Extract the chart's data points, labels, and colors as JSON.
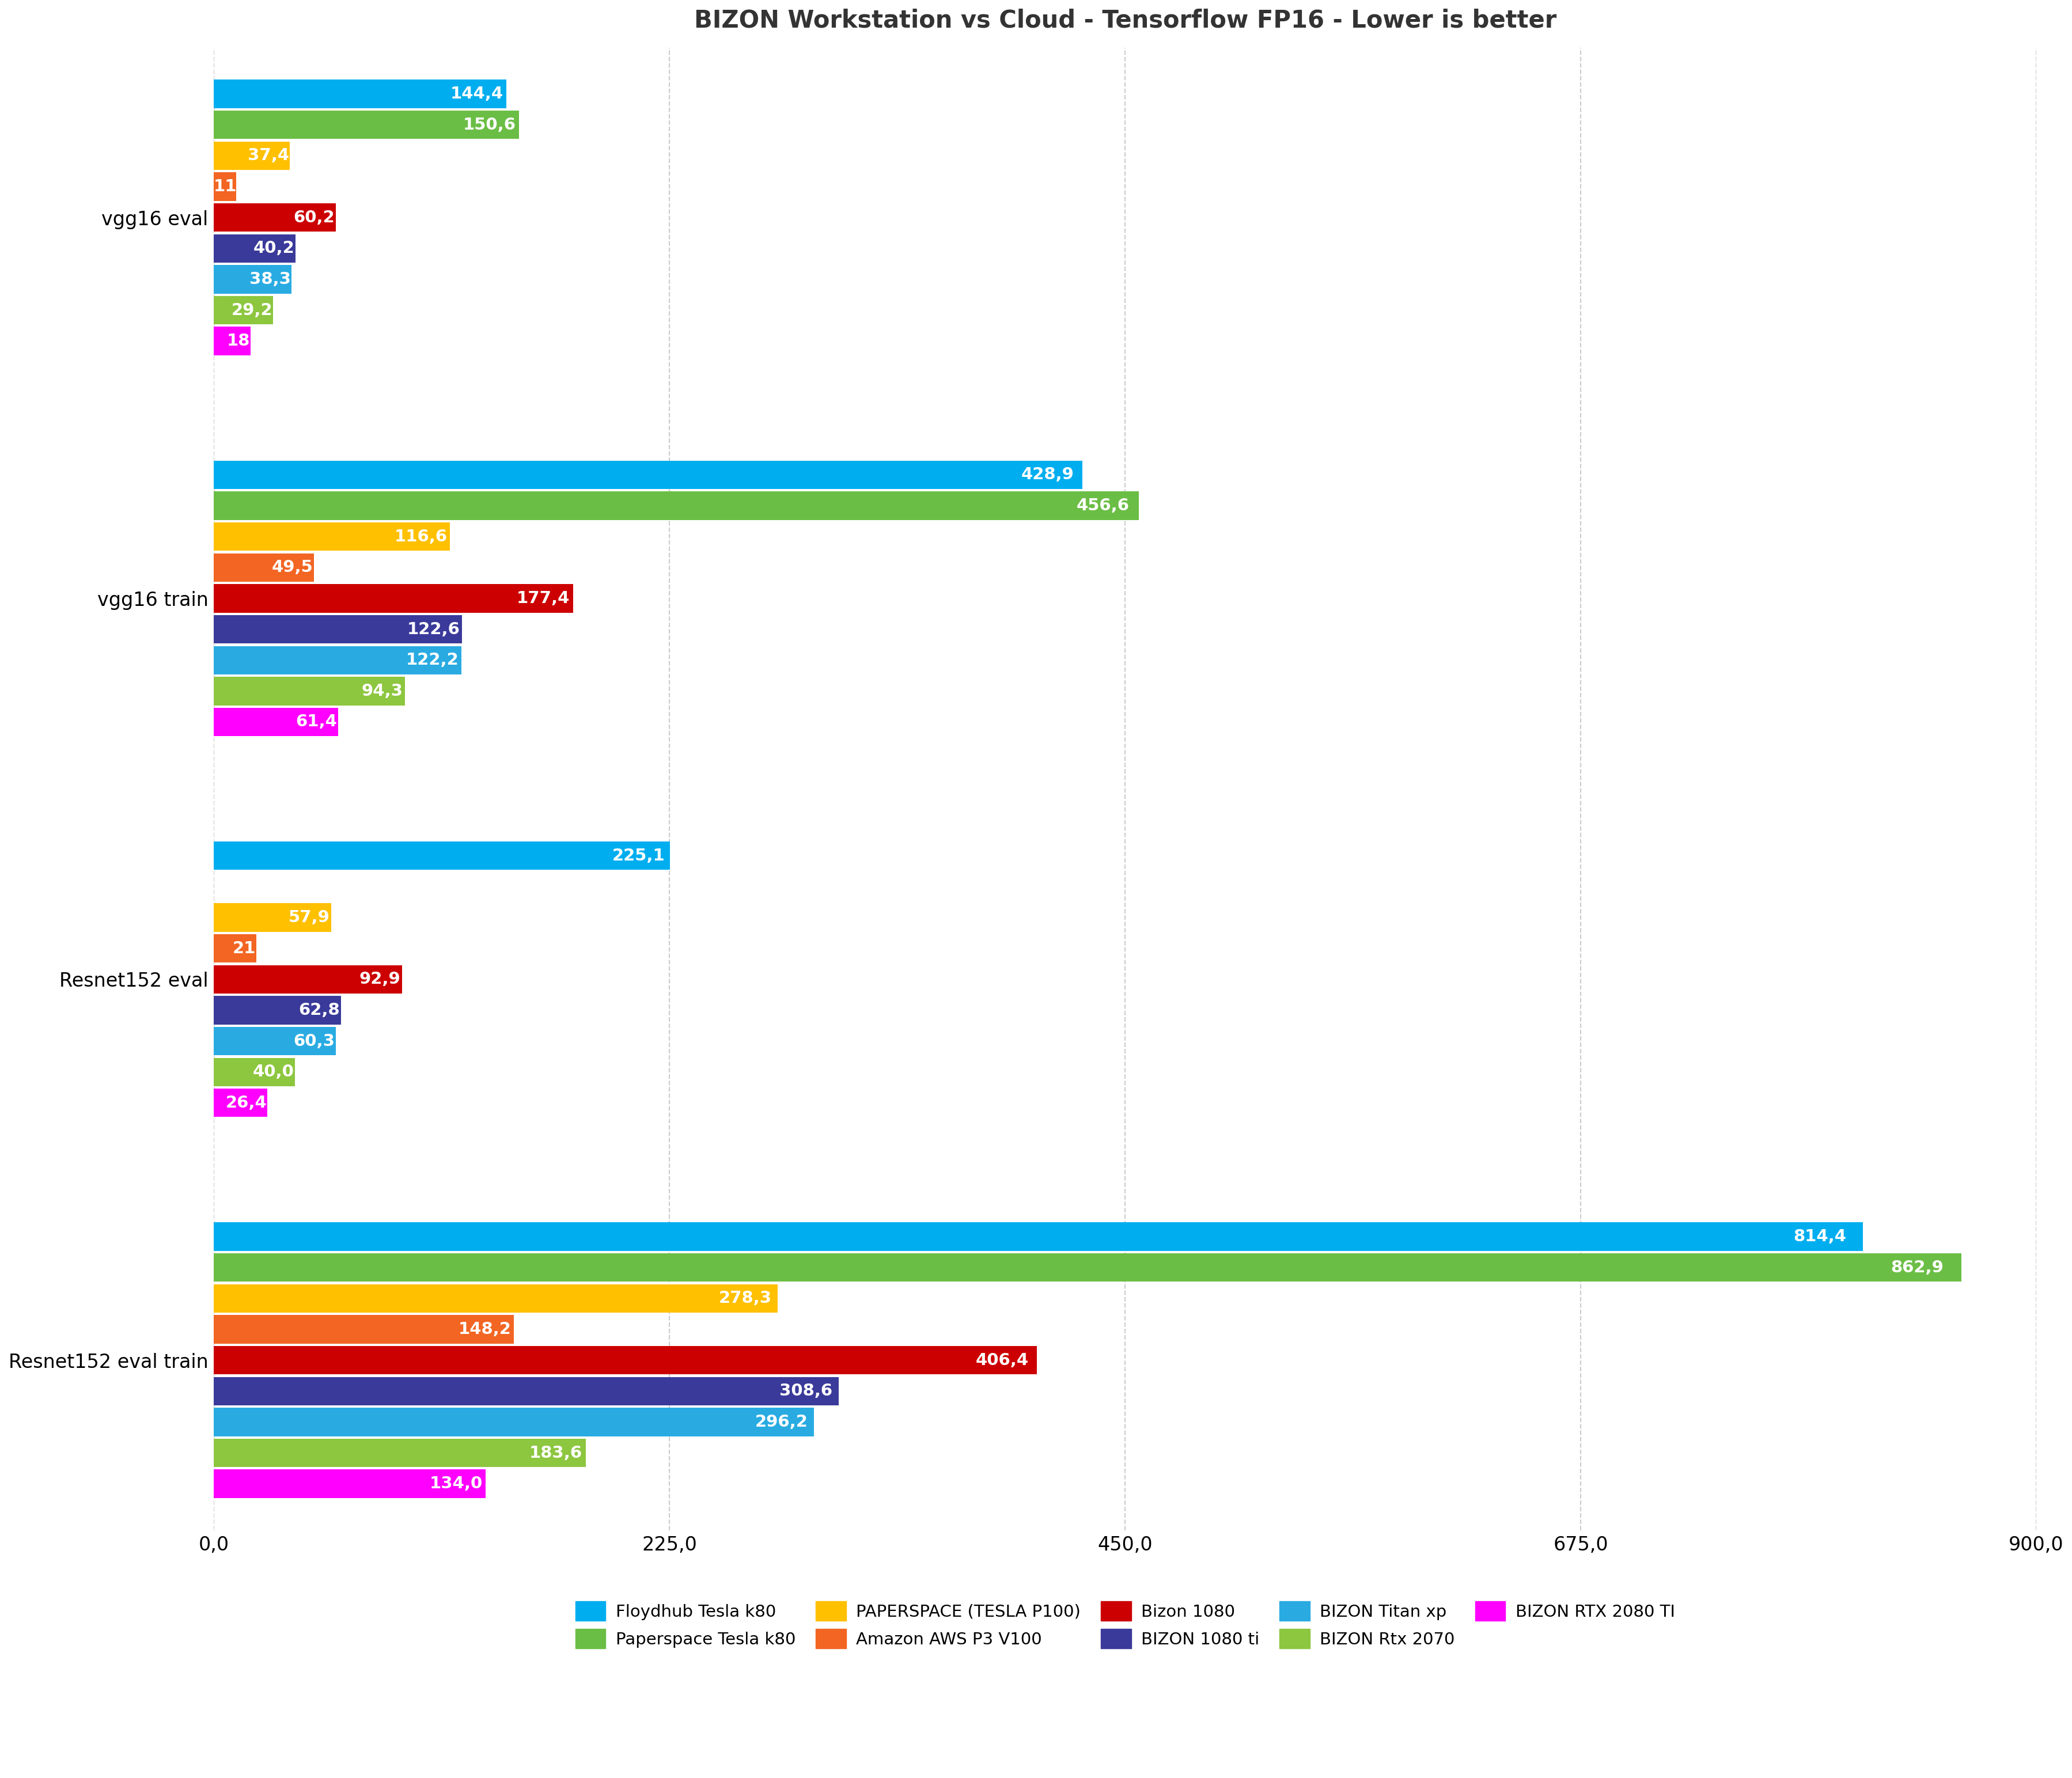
{
  "title": "BIZON Workstation vs Cloud - Tensorflow FP16 - Lower is better",
  "groups": [
    "Resnet152 eval train",
    "Resnet152 eval",
    "vgg16 train",
    "vgg16 eval"
  ],
  "group_labels": [
    "Resnet152 eval train",
    "Resnet152 eval",
    "vgg16 train",
    "vgg16 eval"
  ],
  "series": [
    {
      "label": "Floydhub Tesla k80",
      "color": "#00AEEF",
      "values": [
        814.4,
        225.1,
        428.9,
        144.4
      ]
    },
    {
      "label": "Paperspace Tesla k80",
      "color": "#6BBE45",
      "values": [
        862.9,
        null,
        456.6,
        150.6
      ]
    },
    {
      "label": "PAPERSPACE (TESLA P100)",
      "color": "#FFC000",
      "values": [
        278.3,
        57.9,
        116.6,
        37.4
      ]
    },
    {
      "label": "Amazon AWS P3 V100",
      "color": "#F26522",
      "values": [
        148.2,
        21.0,
        49.5,
        11.0
      ]
    },
    {
      "label": "Bizon 1080",
      "color": "#CC0000",
      "values": [
        406.4,
        92.9,
        177.4,
        60.2
      ]
    },
    {
      "label": "BIZON 1080 ti",
      "color": "#3A3A9A",
      "values": [
        308.6,
        62.8,
        122.6,
        40.2
      ]
    },
    {
      "label": "BIZON Titan xp",
      "color": "#29ABE2",
      "values": [
        296.2,
        60.3,
        122.2,
        38.3
      ]
    },
    {
      "label": "BIZON Rtx 2070",
      "color": "#8DC63F",
      "values": [
        183.6,
        40.0,
        94.3,
        29.2
      ]
    },
    {
      "label": "BIZON RTX 2080 TI",
      "color": "#FF00FF",
      "values": [
        134.0,
        26.4,
        61.4,
        18.0
      ]
    }
  ],
  "value_fmt": [
    [
      "814,4",
      "225,1",
      "428,9",
      "144,4"
    ],
    [
      "862,9",
      null,
      "456,6",
      "150,6"
    ],
    [
      "278,3",
      "57,9",
      "116,6",
      "37,4"
    ],
    [
      "148,2",
      "21",
      "49,5",
      "11"
    ],
    [
      "406,4",
      "92,9",
      "177,4",
      "60,2"
    ],
    [
      "308,6",
      "62,8",
      "122,6",
      "40,2"
    ],
    [
      "296,2",
      "60,3",
      "122,2",
      "38,3"
    ],
    [
      "183,6",
      "40,0",
      "94,3",
      "29,2"
    ],
    [
      "134,0",
      "26,4",
      "61,4",
      "18"
    ]
  ],
  "xlim": [
    0,
    900
  ],
  "xticks": [
    0,
    225,
    450,
    675,
    900
  ],
  "xtick_labels": [
    "0,0",
    "225,0",
    "450,0",
    "675,0",
    "900,0"
  ],
  "background_color": "#FFFFFF",
  "grid_color": "#CCCCCC",
  "title_fontsize": 30,
  "label_fontsize": 24,
  "bar_fontsize": 21,
  "tick_fontsize": 24,
  "legend_fontsize": 21
}
